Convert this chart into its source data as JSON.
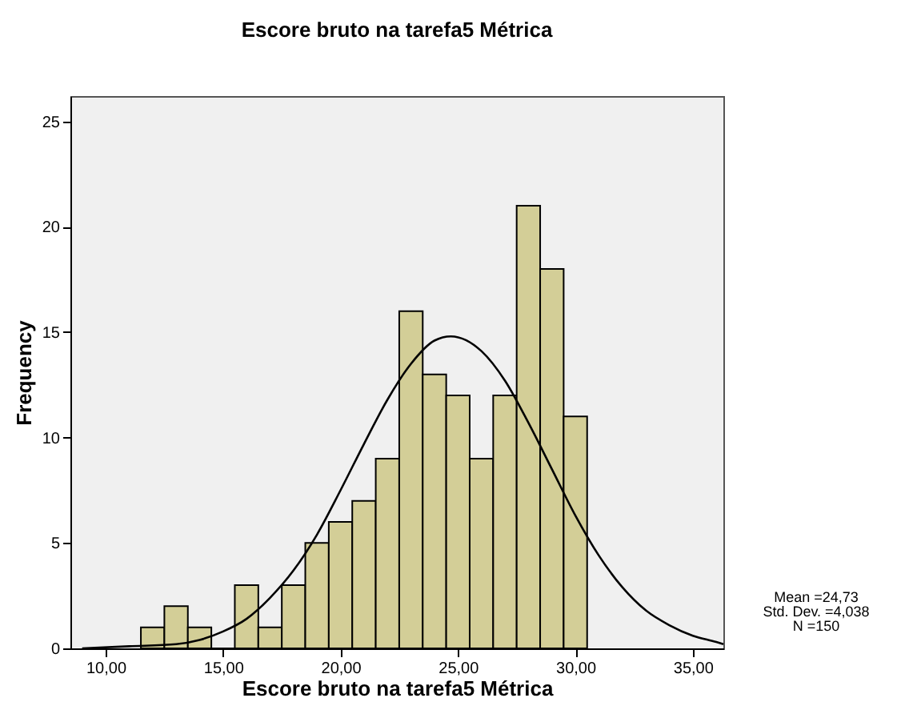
{
  "chart_data": {
    "type": "histogram",
    "title": "Escore bruto na tarefa5 Métrica",
    "xlabel": "Escore bruto na tarefa5 Métrica",
    "ylabel": "Frequency",
    "bins": [
      11.5,
      12.5,
      13.5,
      14.5,
      15.5,
      16.5,
      17.5,
      18.5,
      19.5,
      20.5,
      21.5,
      22.5,
      23.5,
      24.5,
      25.5,
      26.5,
      27.5,
      28.5,
      29.5,
      30.5
    ],
    "series": [
      {
        "color": "#d3ce97",
        "values": [
          1,
          2,
          1,
          0,
          3,
          1,
          3,
          5,
          6,
          7,
          9,
          16,
          13,
          12,
          9,
          12,
          21,
          18,
          11
        ]
      },
      {
        "type": "line",
        "color": "#000000",
        "x": [
          9,
          11,
          13,
          14,
          15,
          16,
          17,
          18,
          19,
          20,
          21,
          22,
          23,
          24,
          24.7,
          26,
          27,
          28,
          29,
          30,
          31,
          32,
          33,
          34,
          35,
          36,
          36.3
        ],
        "values": [
          0.0,
          0.1,
          0.2,
          0.4,
          0.8,
          1.4,
          2.4,
          3.7,
          5.4,
          7.5,
          9.7,
          11.8,
          13.5,
          14.6,
          14.8,
          14.1,
          12.7,
          10.7,
          8.5,
          6.3,
          4.4,
          2.9,
          1.8,
          1.1,
          0.6,
          0.3,
          0.2
        ]
      }
    ],
    "xlim": [
      8.5,
      36.3
    ],
    "xticks": [
      {
        "value": 10,
        "label": "10,00"
      },
      {
        "value": 15,
        "label": "15,00"
      },
      {
        "value": 20,
        "label": "20,00"
      },
      {
        "value": 25,
        "label": "25,00"
      },
      {
        "value": 30,
        "label": "30,00"
      },
      {
        "value": 35,
        "label": "35,00"
      }
    ],
    "ylim": [
      0,
      26.2
    ],
    "yticks": [
      0,
      5,
      10,
      15,
      20,
      25
    ],
    "annotations": [
      "Mean =24,73",
      "Std. Dev. =4,038",
      "N =150"
    ]
  }
}
